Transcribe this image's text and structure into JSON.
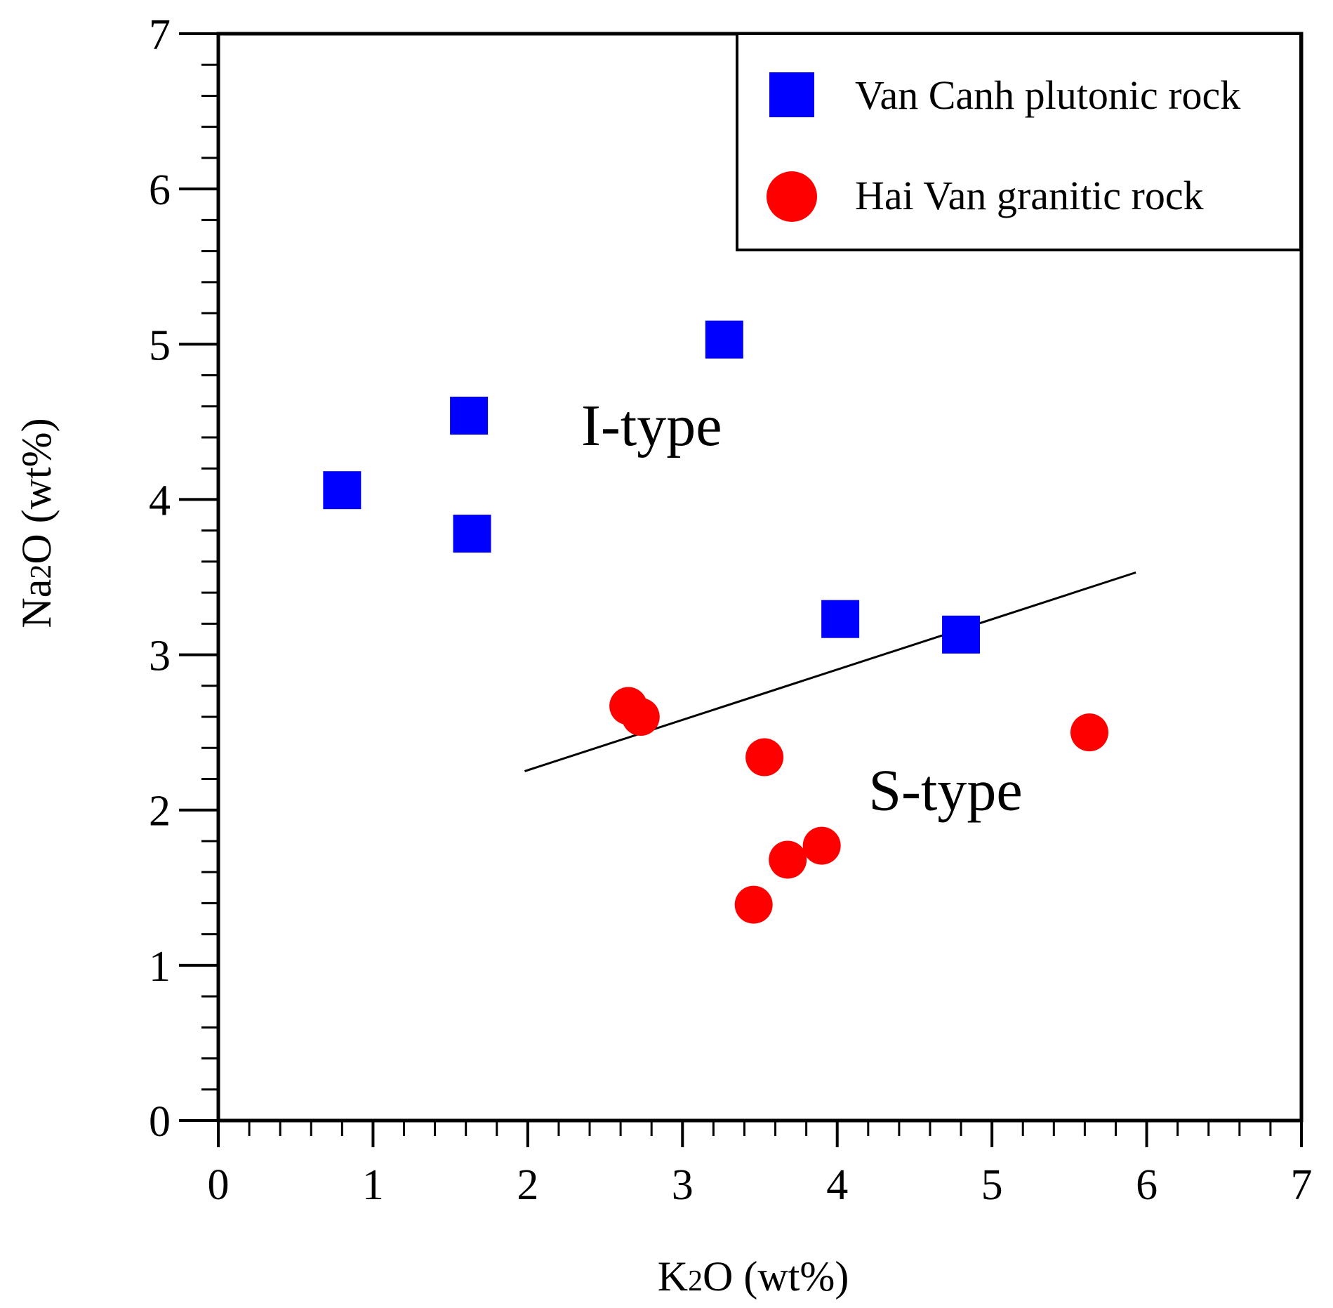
{
  "chart_data": {
    "type": "scatter",
    "title": "",
    "xlabel": "K2O (wt%)",
    "ylabel": "Na2O (wt%)",
    "xlim": [
      0,
      7
    ],
    "ylim": [
      0,
      7
    ],
    "xticks": [
      0,
      1,
      2,
      3,
      4,
      5,
      6,
      7
    ],
    "yticks": [
      0,
      1,
      2,
      3,
      4,
      5,
      6,
      7
    ],
    "minor_step": 0.2,
    "grid": false,
    "legend_position": "top-right",
    "series": [
      {
        "name": "Van Canh plutonic rock",
        "marker": "square",
        "color": "#0000ff",
        "points": [
          {
            "x": 0.8,
            "y": 4.06
          },
          {
            "x": 1.62,
            "y": 4.54
          },
          {
            "x": 1.64,
            "y": 3.78
          },
          {
            "x": 3.27,
            "y": 5.03
          },
          {
            "x": 4.02,
            "y": 3.23
          },
          {
            "x": 4.8,
            "y": 3.13
          }
        ]
      },
      {
        "name": "Hai Van granitic rock",
        "marker": "circle",
        "color": "#ff0000",
        "points": [
          {
            "x": 2.65,
            "y": 2.67
          },
          {
            "x": 2.73,
            "y": 2.6
          },
          {
            "x": 3.53,
            "y": 2.34
          },
          {
            "x": 3.46,
            "y": 1.39
          },
          {
            "x": 3.68,
            "y": 1.68
          },
          {
            "x": 3.9,
            "y": 1.77
          },
          {
            "x": 5.63,
            "y": 2.5
          }
        ]
      }
    ],
    "divider_line": {
      "x": [
        1.98,
        5.93
      ],
      "y": [
        2.25,
        3.53
      ]
    },
    "annotations": [
      {
        "id": "i-type",
        "text": "I-type",
        "x": 2.8,
        "y": 4.35
      },
      {
        "id": "s-type",
        "text": "S-type",
        "x": 4.7,
        "y": 2.0
      }
    ]
  }
}
